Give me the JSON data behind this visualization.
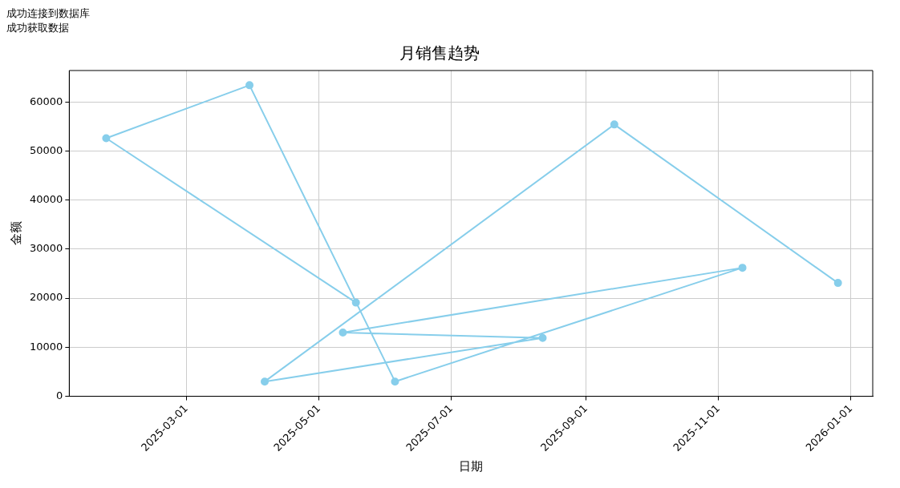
{
  "chart_data": {
    "type": "line",
    "title": "月销售趋势",
    "xlabel": "日期",
    "ylabel": "金额",
    "annotations": [
      "成功连接到数据库",
      "成功获取数据"
    ],
    "x": [
      "2025-05-18",
      "2025-01-23",
      "2025-03-30",
      "2025-06-05",
      "2025-11-12",
      "2025-05-12",
      "2025-08-12",
      "2025-04-06",
      "2025-09-14",
      "2025-12-26"
    ],
    "series": [
      {
        "color": "#87ceeb",
        "values": [
          19100,
          52600,
          63400,
          3000,
          26200,
          13000,
          11900,
          3000,
          55400,
          23100
        ]
      }
    ],
    "xlim": [
      "2025-01-06",
      "2026-01-11"
    ],
    "xticks": [
      "2025-03-01",
      "2025-05-01",
      "2025-07-01",
      "2025-09-01",
      "2025-11-01",
      "2026-01-01"
    ],
    "ylim": [
      0,
      66400
    ],
    "yticks": [
      0,
      10000,
      20000,
      30000,
      40000,
      50000,
      60000
    ],
    "grid": true,
    "legend": false,
    "marker": "circle",
    "line_style": "solid"
  }
}
